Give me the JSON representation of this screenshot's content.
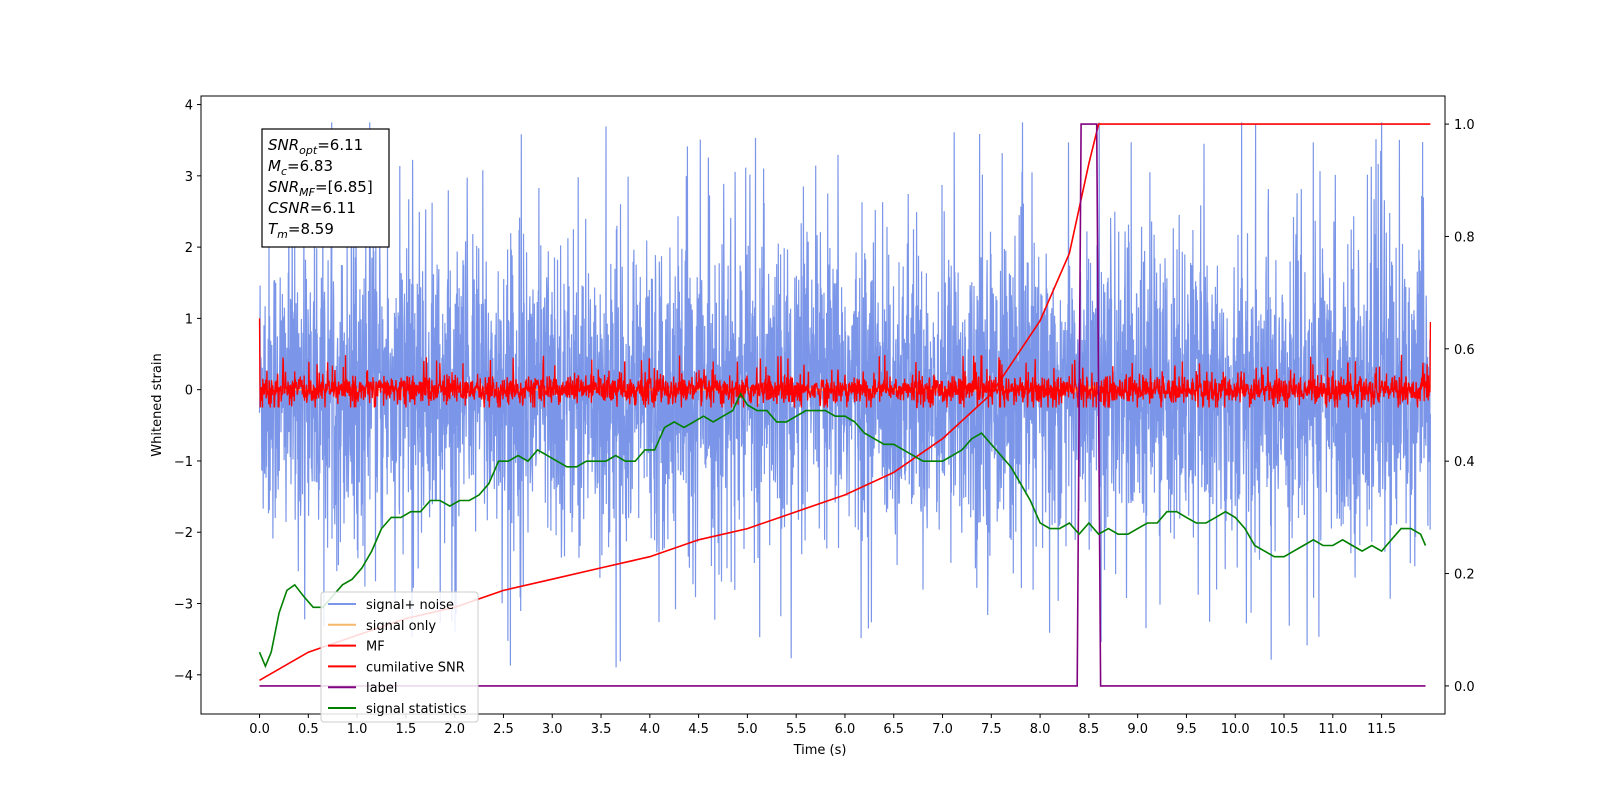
{
  "chart_data": {
    "type": "line",
    "xlabel": "Time (s)",
    "ylabel": "Whitened strain",
    "xlim": [
      -0.6,
      12.15
    ],
    "ylim": [
      -4.55,
      4.12
    ],
    "y2lim": [
      -0.05,
      1.05
    ],
    "x_ticks": [
      "0.0",
      "0.5",
      "1.0",
      "1.5",
      "2.0",
      "2.5",
      "3.0",
      "3.5",
      "4.0",
      "4.5",
      "5.0",
      "5.5",
      "6.0",
      "6.5",
      "7.0",
      "7.5",
      "8.0",
      "8.5",
      "9.0",
      "9.5",
      "10.0",
      "10.5",
      "11.0",
      "11.5"
    ],
    "y_ticks": [
      "4",
      "3",
      "2",
      "1",
      "0",
      "−1",
      "−2",
      "−3",
      "−4"
    ],
    "y2_ticks": [
      "1.0",
      "0.8",
      "0.6",
      "0.4",
      "0.2",
      "0.0"
    ],
    "legend_position": "lower-left",
    "annotation": {
      "lines": [
        {
          "var": "SNR",
          "sub": "opt",
          "value": "=6.11"
        },
        {
          "var": "M",
          "sub": "c",
          "value": "=6.83"
        },
        {
          "var": "SNR",
          "sub": "MF",
          "value": "=[6.85]"
        },
        {
          "var": "CSNR",
          "sub": "",
          "value": "=6.11"
        },
        {
          "var": "T",
          "sub": "m",
          "value": "=8.59"
        }
      ]
    },
    "series": [
      {
        "name": "signal+ noise",
        "color": "#7b96e8",
        "axis": "left",
        "description": "whitened noise, amplitude ~ ±2.2 with spikes to ±3.7",
        "x_range": [
          0.0,
          12.0
        ]
      },
      {
        "name": "signal only",
        "color": "#f5b96b",
        "axis": "left",
        "description": "chirp signal growing near merger",
        "x_range": [
          0.0,
          8.6
        ]
      },
      {
        "name": "MF",
        "color": "#ff0000",
        "axis": "left",
        "description": "matched filter output, amplitude ~ ±0.3",
        "x_range": [
          0.0,
          12.0
        ]
      },
      {
        "name": "cumilative SNR",
        "color": "#ff0000",
        "axis": "right",
        "x": [
          0.0,
          0.5,
          1.0,
          1.5,
          2.0,
          2.5,
          3.0,
          3.5,
          4.0,
          4.5,
          5.0,
          5.5,
          6.0,
          6.5,
          7.0,
          7.5,
          8.0,
          8.3,
          8.5,
          8.6,
          12.0
        ],
        "y": [
          0.01,
          0.06,
          0.09,
          0.12,
          0.14,
          0.17,
          0.19,
          0.21,
          0.23,
          0.26,
          0.28,
          0.31,
          0.34,
          0.38,
          0.44,
          0.52,
          0.65,
          0.77,
          0.93,
          1.0,
          1.0
        ]
      },
      {
        "name": "label",
        "color": "#800080",
        "axis": "right",
        "x": [
          0.0,
          8.38,
          8.42,
          8.55,
          8.58,
          8.62,
          11.95
        ],
        "y": [
          0.0,
          0.0,
          1.0,
          1.0,
          1.0,
          0.0,
          0.0
        ]
      },
      {
        "name": "signal statistics",
        "color": "#008000",
        "axis": "right",
        "x": [
          0.0,
          0.06,
          0.12,
          0.2,
          0.28,
          0.36,
          0.45,
          0.55,
          0.65,
          0.75,
          0.85,
          0.95,
          1.05,
          1.15,
          1.25,
          1.35,
          1.45,
          1.55,
          1.65,
          1.75,
          1.85,
          1.95,
          2.05,
          2.15,
          2.25,
          2.35,
          2.45,
          2.55,
          2.65,
          2.75,
          2.85,
          2.95,
          3.05,
          3.15,
          3.25,
          3.35,
          3.45,
          3.55,
          3.65,
          3.75,
          3.85,
          3.95,
          4.05,
          4.15,
          4.25,
          4.35,
          4.45,
          4.55,
          4.65,
          4.75,
          4.85,
          4.93,
          5.0,
          5.1,
          5.2,
          5.3,
          5.4,
          5.5,
          5.6,
          5.7,
          5.8,
          5.9,
          6.0,
          6.1,
          6.2,
          6.3,
          6.4,
          6.5,
          6.6,
          6.7,
          6.8,
          6.9,
          7.0,
          7.1,
          7.2,
          7.3,
          7.4,
          7.5,
          7.6,
          7.7,
          7.8,
          7.9,
          8.0,
          8.1,
          8.2,
          8.3,
          8.4,
          8.5,
          8.6,
          8.7,
          8.8,
          8.9,
          9.0,
          9.1,
          9.2,
          9.3,
          9.4,
          9.5,
          9.6,
          9.7,
          9.8,
          9.9,
          10.0,
          10.1,
          10.2,
          10.3,
          10.4,
          10.5,
          10.6,
          10.7,
          10.8,
          10.9,
          11.0,
          11.1,
          11.2,
          11.3,
          11.4,
          11.5,
          11.6,
          11.7,
          11.8,
          11.9,
          11.95
        ],
        "y": [
          0.06,
          0.035,
          0.06,
          0.13,
          0.17,
          0.18,
          0.16,
          0.14,
          0.14,
          0.16,
          0.18,
          0.19,
          0.21,
          0.24,
          0.28,
          0.3,
          0.3,
          0.31,
          0.31,
          0.33,
          0.33,
          0.32,
          0.33,
          0.33,
          0.34,
          0.36,
          0.4,
          0.4,
          0.41,
          0.4,
          0.42,
          0.41,
          0.4,
          0.39,
          0.39,
          0.4,
          0.4,
          0.4,
          0.41,
          0.4,
          0.4,
          0.42,
          0.42,
          0.46,
          0.47,
          0.46,
          0.47,
          0.48,
          0.47,
          0.48,
          0.49,
          0.52,
          0.5,
          0.49,
          0.49,
          0.47,
          0.47,
          0.48,
          0.49,
          0.49,
          0.49,
          0.48,
          0.48,
          0.47,
          0.45,
          0.44,
          0.43,
          0.43,
          0.42,
          0.41,
          0.4,
          0.4,
          0.4,
          0.41,
          0.42,
          0.44,
          0.45,
          0.43,
          0.41,
          0.39,
          0.36,
          0.33,
          0.29,
          0.28,
          0.28,
          0.29,
          0.27,
          0.29,
          0.27,
          0.28,
          0.27,
          0.27,
          0.28,
          0.29,
          0.29,
          0.31,
          0.31,
          0.3,
          0.29,
          0.29,
          0.3,
          0.31,
          0.3,
          0.28,
          0.25,
          0.24,
          0.23,
          0.23,
          0.24,
          0.25,
          0.26,
          0.25,
          0.25,
          0.26,
          0.25,
          0.24,
          0.25,
          0.24,
          0.26,
          0.28,
          0.28,
          0.27,
          0.25
        ]
      }
    ]
  }
}
